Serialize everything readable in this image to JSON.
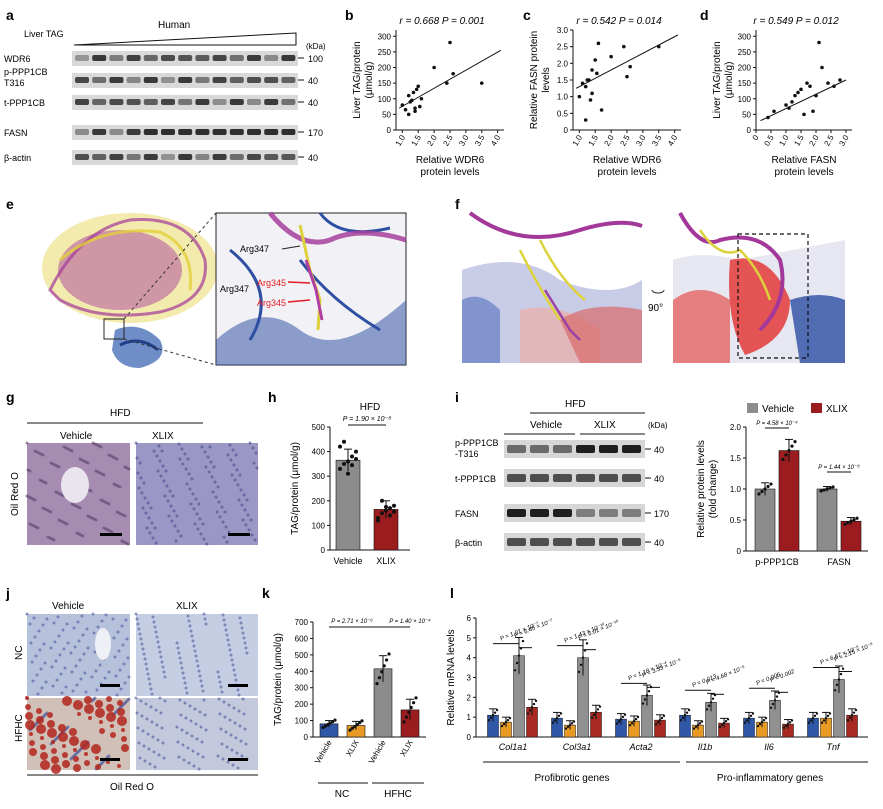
{
  "labels": {
    "a": "a",
    "b": "b",
    "c": "c",
    "d": "d",
    "e": "e",
    "f": "f",
    "g": "g",
    "h": "h",
    "i": "i",
    "j": "j",
    "k": "k",
    "l": "l"
  },
  "panel_a": {
    "title_left": "Liver TAG",
    "title_human": "Human",
    "kda": "(kDa)",
    "rows": [
      {
        "name": "WDR6",
        "kda": "100"
      },
      {
        "name": "p-PPP1CB\nT316",
        "kda": "40"
      },
      {
        "name": "t-PPP1CB",
        "kda": "40"
      },
      {
        "name": "FASN",
        "kda": "170"
      },
      {
        "name": "β-actin",
        "kda": "40"
      }
    ]
  },
  "panel_e": {
    "labels": [
      "Arg347",
      "Arg347",
      "Arg345",
      "Arg345"
    ]
  },
  "panel_f": {
    "rotation": "90°"
  },
  "panel_g": {
    "group": "HFD",
    "cols": [
      "Vehicle",
      "XLIX"
    ],
    "stain": "Oil Red O"
  },
  "panel_i": {
    "group": "HFD",
    "cols": [
      "Vehicle",
      "XLIX"
    ],
    "kda": "(kDa)",
    "rows": [
      {
        "name": "p-PPP1CB\n-T316",
        "kda": "40"
      },
      {
        "name": "t-PPP1CB",
        "kda": "40"
      },
      {
        "name": "FASN",
        "kda": "170"
      },
      {
        "name": "β-actin",
        "kda": "40"
      }
    ]
  },
  "panel_j": {
    "cols": [
      "Vehicle",
      "XLIX"
    ],
    "rows": [
      "NC",
      "HFHC"
    ],
    "stain": "Oil Red O"
  },
  "colors": {
    "vehicle": "#8c8c8c",
    "xlix": "#9b1c1f",
    "blue": "#2f58a8",
    "orange": "#e99a25",
    "grey_l": "#909090",
    "red_l": "#a82a22"
  },
  "chart_data": [
    {
      "id": "b",
      "type": "scatter",
      "stat": "r = 0.668  P = 0.001",
      "ylabel": "Liver TAG/protein\n(μmol/g)",
      "xlabel": "Relative WDR6\nprotein levels",
      "xlim": [
        0.8,
        4.2
      ],
      "ylim": [
        0,
        320
      ],
      "xticks": [
        "1.0",
        "1.5",
        "2.0",
        "2.5",
        "3.0",
        "3.5",
        "4.0"
      ],
      "yticks": [
        "0",
        "50",
        "100",
        "150",
        "200",
        "250",
        "300"
      ],
      "x": [
        1.0,
        1.1,
        1.2,
        1.25,
        1.3,
        1.35,
        1.4,
        1.45,
        1.5,
        1.55,
        1.6,
        1.4,
        1.2,
        2.0,
        2.4,
        2.5,
        2.6,
        3.5
      ],
      "y": [
        80,
        65,
        110,
        90,
        95,
        120,
        70,
        130,
        140,
        75,
        100,
        60,
        50,
        200,
        150,
        280,
        180,
        150
      ],
      "fit": [
        [
          0.9,
          70
        ],
        [
          4.1,
          255
        ]
      ]
    },
    {
      "id": "c",
      "type": "scatter",
      "stat": "r = 0.542  P = 0.014",
      "ylabel": "Relative FASN protein\nlevels",
      "xlabel": "Relative WDR6\nprotein levels",
      "xlim": [
        0.8,
        4.2
      ],
      "ylim": [
        0,
        3.0
      ],
      "xticks": [
        "1.0",
        "1.5",
        "2.0",
        "2.5",
        "3.0",
        "3.5",
        "4.0"
      ],
      "yticks": [
        "0",
        "0.5",
        "1.0",
        "1.5",
        "2.0",
        "2.5",
        "3.0"
      ],
      "x": [
        1.0,
        1.1,
        1.2,
        1.25,
        1.3,
        1.35,
        1.4,
        1.5,
        1.55,
        1.6,
        1.7,
        1.4,
        2.0,
        2.4,
        2.5,
        2.6,
        3.5,
        1.2
      ],
      "y": [
        1.0,
        1.4,
        1.3,
        1.5,
        1.5,
        0.9,
        1.8,
        2.1,
        1.7,
        2.6,
        0.6,
        1.1,
        2.2,
        2.5,
        1.6,
        1.9,
        2.5,
        0.3
      ],
      "fit": [
        [
          0.9,
          1.25
        ],
        [
          4.1,
          2.85
        ]
      ]
    },
    {
      "id": "d",
      "type": "scatter",
      "stat": "r = 0.549  P = 0.012",
      "ylabel": "Liver TAG/protein\n(μmol/g)",
      "xlabel": "Relative FASN\nprotein levels",
      "xlim": [
        0,
        3.2
      ],
      "ylim": [
        0,
        320
      ],
      "xticks": [
        "0",
        "0.5",
        "1.0",
        "1.5",
        "2.0",
        "2.5",
        "3.0"
      ],
      "yticks": [
        "0",
        "50",
        "100",
        "150",
        "200",
        "250",
        "300"
      ],
      "x": [
        0.4,
        0.6,
        1.0,
        1.1,
        1.3,
        1.5,
        1.6,
        1.7,
        1.8,
        1.9,
        2.0,
        2.1,
        2.2,
        2.4,
        2.6,
        1.2,
        1.4,
        2.8
      ],
      "y": [
        40,
        60,
        80,
        70,
        110,
        130,
        50,
        150,
        140,
        60,
        110,
        280,
        200,
        150,
        140,
        90,
        120,
        160
      ],
      "fit": [
        [
          0.15,
          30
        ],
        [
          3.0,
          160
        ]
      ]
    },
    {
      "id": "h",
      "type": "bar",
      "title": "HFD",
      "pval": "P = 1.90 × 10⁻⁸",
      "ylabel": "TAG/protein (μmol/g)",
      "ylim": [
        0,
        500
      ],
      "yticks": [
        "0",
        "100",
        "200",
        "300",
        "400",
        "500"
      ],
      "categories": [
        "Vehicle",
        "XLIX"
      ],
      "values": [
        365,
        165
      ],
      "errors": [
        45,
        35
      ],
      "points": [
        [
          330,
          350,
          360,
          380,
          400,
          420,
          440,
          310,
          345,
          370
        ],
        [
          130,
          150,
          160,
          170,
          180,
          120,
          200,
          175,
          140,
          155
        ]
      ]
    },
    {
      "id": "i",
      "type": "bar",
      "legend": [
        "Vehicle",
        "XLIX"
      ],
      "ylabel": "Relative protein levels\n(fold change)",
      "ylim": [
        0,
        2.0
      ],
      "yticks": [
        "0",
        "0.5",
        "1.0",
        "1.5",
        "2.0"
      ],
      "categories": [
        "p-PPP1CB",
        "FASN"
      ],
      "series": [
        {
          "name": "Vehicle",
          "values": [
            1.0,
            1.0
          ],
          "errors": [
            0.1,
            0.04
          ]
        },
        {
          "name": "XLIX",
          "values": [
            1.62,
            0.48
          ],
          "errors": [
            0.18,
            0.06
          ]
        }
      ],
      "pvals": [
        "P = 4.58 × 10⁻⁴",
        "P = 1.44 × 10⁻⁸"
      ]
    },
    {
      "id": "k",
      "type": "bar",
      "ylabel": "TAG/protein (μmol/g)",
      "ylim": [
        0,
        700
      ],
      "yticks": [
        "0",
        "100",
        "200",
        "300",
        "400",
        "500",
        "600",
        "700"
      ],
      "categories": [
        "Vehicle",
        "XLIX",
        "Vehicle",
        "XLIX"
      ],
      "groups": [
        "NC",
        "HFHC"
      ],
      "values": [
        80,
        70,
        415,
        165
      ],
      "errors": [
        20,
        25,
        80,
        65
      ],
      "pvals": [
        "P = 2.71 × 10⁻⁶",
        "P = 1.40 × 10⁻⁴"
      ]
    },
    {
      "id": "l",
      "type": "bar",
      "ylabel": "Relative mRNA levels",
      "ylim": [
        0,
        6
      ],
      "yticks": [
        "0",
        "1",
        "2",
        "3",
        "4",
        "5",
        "6"
      ],
      "genes": [
        "Col1a1",
        "Col3a1",
        "Acta2",
        "Il1b",
        "Il6",
        "Tnf"
      ],
      "groups": [
        "Profibrotic genes",
        "Pro-inflammatory genes"
      ],
      "series_colors": [
        "#2f58a8",
        "#e99a25",
        "#909090",
        "#a82a22"
      ],
      "values": [
        [
          1.1,
          0.75,
          4.1,
          1.5
        ],
        [
          0.95,
          0.6,
          4.0,
          1.25
        ],
        [
          0.9,
          0.8,
          2.1,
          0.85
        ],
        [
          1.1,
          0.6,
          1.75,
          0.7
        ],
        [
          0.95,
          0.75,
          1.85,
          0.65
        ],
        [
          0.95,
          0.95,
          2.9,
          1.1
        ]
      ],
      "pvals": [
        [
          "P = 1.01 × 10⁻⁷",
          "P = 6.45 × 10⁻⁷"
        ],
        [
          "P = 1.43 × 10⁻¹⁰",
          "P = 6.01 × 10⁻¹⁰"
        ],
        [
          "P = 1.18 × 10⁻⁴",
          "P = 3.33 × 10⁻⁵"
        ],
        [
          "P = 0.013",
          "P = 4.68 × 10⁻⁵"
        ],
        [
          "P = 0.006",
          "P = 0.002"
        ],
        [
          "P = 6.67 × 10⁻⁵",
          "P = 2.15 × 10⁻⁵"
        ]
      ]
    }
  ]
}
